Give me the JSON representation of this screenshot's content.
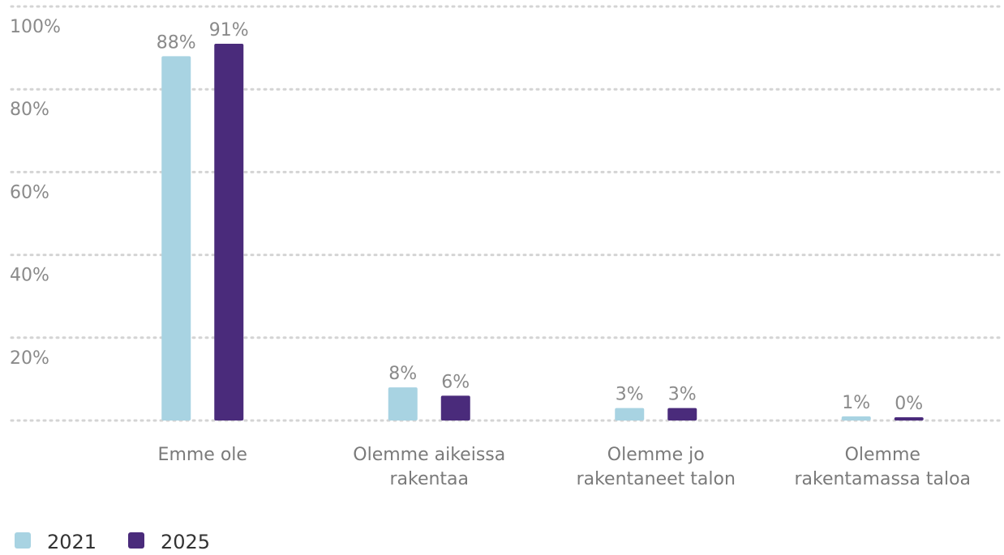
{
  "chart_data": {
    "type": "bar",
    "categories": [
      [
        "Emme ole"
      ],
      [
        "Olemme aikeissa",
        "rakentaa"
      ],
      [
        "Olemme jo",
        "rakentaneet talon"
      ],
      [
        "Olemme",
        "rakentamassa taloa"
      ]
    ],
    "series": [
      {
        "name": "2021",
        "color": "#a8d3e2",
        "values": [
          88,
          8,
          3,
          1
        ],
        "labels": [
          "88%",
          "8%",
          "3%",
          "1%"
        ]
      },
      {
        "name": "2025",
        "color": "#4a2b7b",
        "values": [
          91,
          6,
          3,
          0
        ],
        "labels": [
          "91%",
          "6%",
          "3%",
          "0%"
        ]
      }
    ],
    "ylim": [
      0,
      100
    ],
    "yticks": [
      {
        "value": 20,
        "label": "20%"
      },
      {
        "value": 40,
        "label": "40%"
      },
      {
        "value": 60,
        "label": "60%"
      },
      {
        "value": 80,
        "label": "80%"
      },
      {
        "value": 100,
        "label": "100%"
      }
    ],
    "grid": true,
    "legend_position": "bottom-left"
  }
}
